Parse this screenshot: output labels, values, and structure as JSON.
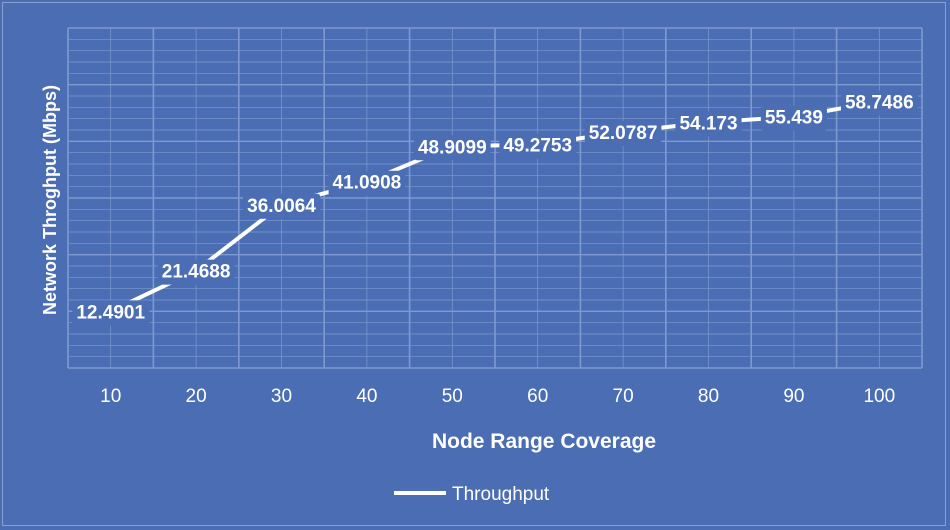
{
  "chart_data": {
    "type": "line",
    "x": [
      10,
      20,
      30,
      40,
      50,
      60,
      70,
      80,
      90,
      100
    ],
    "series": [
      {
        "name": "Throughput",
        "values": [
          12.4901,
          21.4688,
          36.0064,
          41.0908,
          48.9099,
          49.2753,
          52.0787,
          54.173,
          55.439,
          58.7486
        ],
        "labels": [
          "12.4901",
          "21.4688",
          "36.0064",
          "41.0908",
          "48.9099",
          "49.2753",
          "52.0787",
          "54.173",
          "55.439",
          "58.7486"
        ]
      }
    ],
    "xlabel": "Node Range Coverage",
    "ylabel": "Network Throghput (Mbps)",
    "legend": "bottom-center",
    "grid": true,
    "colors": {
      "background": "#4a6db4",
      "line": "#ffffff",
      "grid": "#7f9ad0",
      "label_box": "#4a6db4"
    }
  }
}
